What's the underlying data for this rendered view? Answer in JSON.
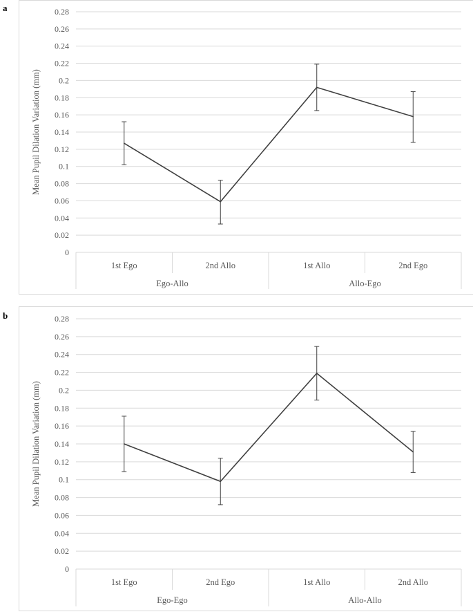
{
  "panels": [
    {
      "letter": "a"
    },
    {
      "letter": "b"
    }
  ],
  "chart_data": [
    {
      "type": "line",
      "title": "",
      "xlabel": "",
      "ylabel": "Mean Pupil Dilation Variation (mm)",
      "ylim": [
        0,
        0.28
      ],
      "y_ticks": [
        0,
        0.02,
        0.04,
        0.06,
        0.08,
        0.1,
        0.12,
        0.14,
        0.16,
        0.18,
        0.2,
        0.22,
        0.24,
        0.26,
        0.28
      ],
      "categories": [
        "1st Ego",
        "2nd Allo",
        "1st Allo",
        "2nd Ego"
      ],
      "groups": [
        {
          "label": "Ego-Allo",
          "categories": [
            "1st Ego",
            "2nd Allo"
          ]
        },
        {
          "label": "Allo-Ego",
          "categories": [
            "1st Allo",
            "2nd Ego"
          ]
        }
      ],
      "series": [
        {
          "values": [
            0.127,
            0.059,
            0.192,
            0.158
          ],
          "error_low": [
            0.102,
            0.033,
            0.165,
            0.128
          ],
          "error_high": [
            0.152,
            0.084,
            0.219,
            0.187
          ]
        }
      ],
      "grid": true,
      "legend": "none",
      "line_color": "#404040"
    },
    {
      "type": "line",
      "title": "",
      "xlabel": "",
      "ylabel": "Mean Pupil Dilation Variation (mm)",
      "ylim": [
        0,
        0.28
      ],
      "y_ticks": [
        0,
        0.02,
        0.04,
        0.06,
        0.08,
        0.1,
        0.12,
        0.14,
        0.16,
        0.18,
        0.2,
        0.22,
        0.24,
        0.26,
        0.28
      ],
      "categories": [
        "1st Ego",
        "2nd Ego",
        "1st Allo",
        "2nd Allo"
      ],
      "groups": [
        {
          "label": "Ego-Ego",
          "categories": [
            "1st Ego",
            "2nd Ego"
          ]
        },
        {
          "label": "Allo-Allo",
          "categories": [
            "1st Allo",
            "2nd Allo"
          ]
        }
      ],
      "series": [
        {
          "values": [
            0.14,
            0.098,
            0.219,
            0.131
          ],
          "error_low": [
            0.109,
            0.072,
            0.189,
            0.108
          ],
          "error_high": [
            0.171,
            0.124,
            0.249,
            0.154
          ]
        }
      ],
      "grid": true,
      "legend": "none",
      "line_color": "#404040"
    }
  ]
}
